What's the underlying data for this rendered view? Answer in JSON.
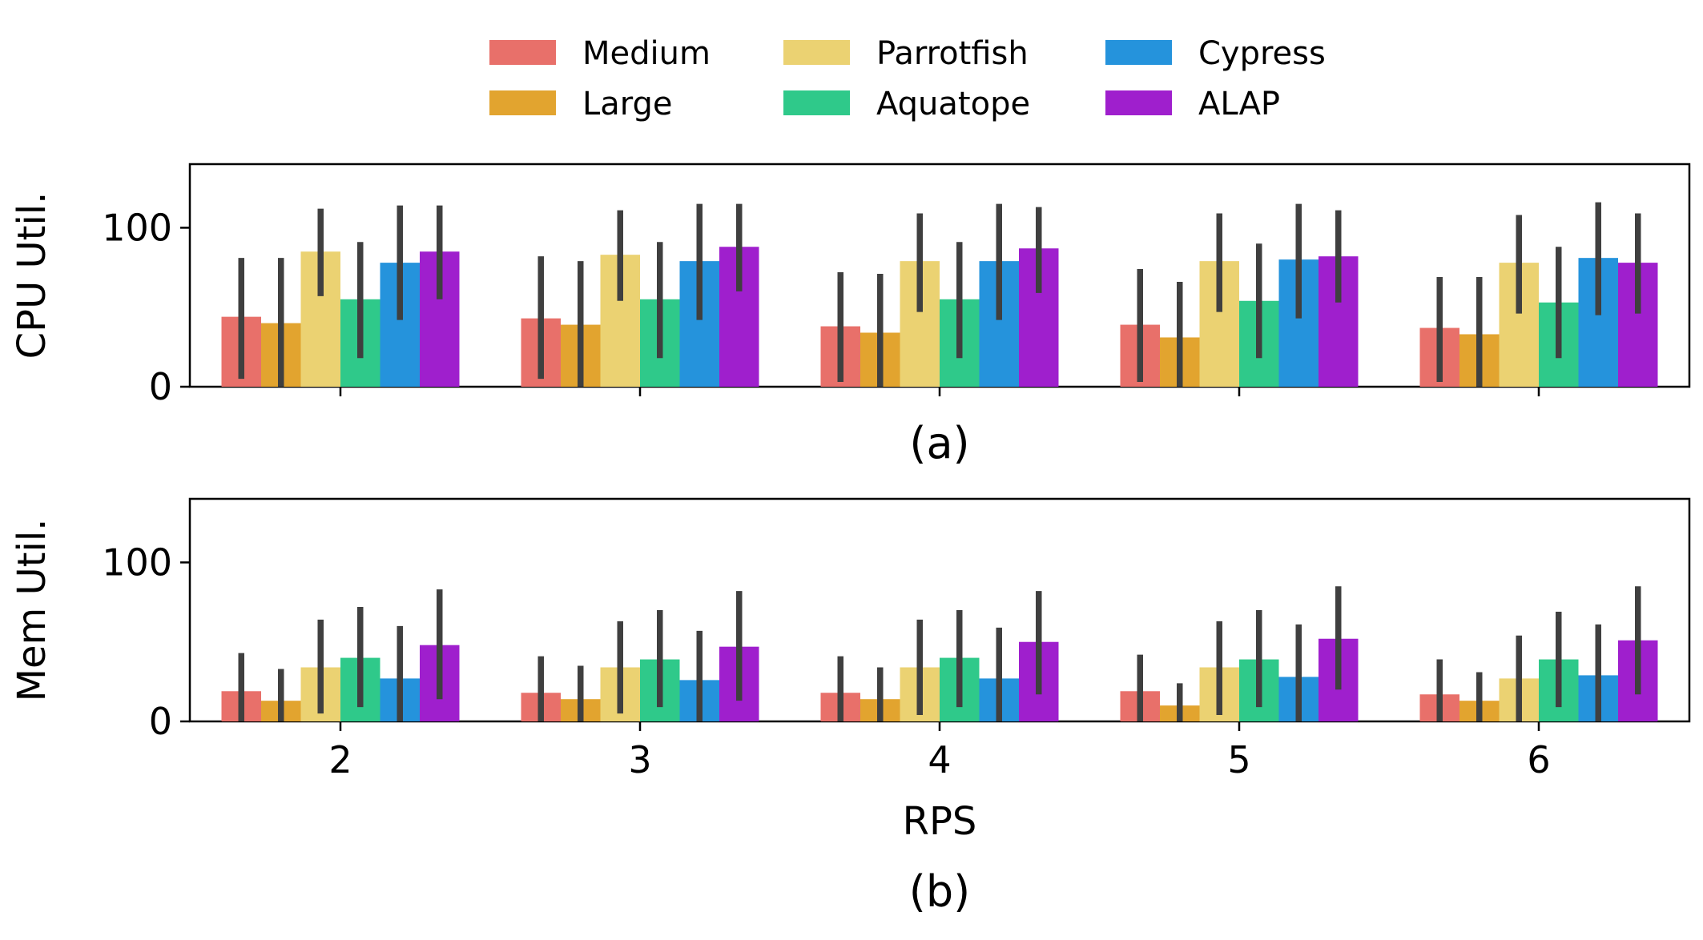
{
  "chart_data": [
    {
      "type": "bar",
      "panel_caption": "(a)",
      "ylabel": "CPU Util.",
      "xlabel": "",
      "ylim": [
        0,
        140
      ],
      "yticks": [
        0,
        100
      ],
      "categories": [
        "2",
        "3",
        "4",
        "5",
        "6"
      ],
      "series": [
        {
          "name": "Medium",
          "values": [
            44,
            43,
            38,
            39,
            37
          ],
          "err_low": [
            5,
            5,
            3,
            3,
            3
          ],
          "err_high": [
            81,
            82,
            72,
            74,
            69
          ]
        },
        {
          "name": "Large",
          "values": [
            40,
            39,
            34,
            31,
            33
          ],
          "err_low": [
            0,
            0,
            0,
            0,
            0
          ],
          "err_high": [
            81,
            79,
            71,
            66,
            69
          ]
        },
        {
          "name": "Parrotfish",
          "values": [
            85,
            83,
            79,
            79,
            78
          ],
          "err_low": [
            57,
            54,
            47,
            47,
            46
          ],
          "err_high": [
            112,
            111,
            109,
            109,
            108
          ]
        },
        {
          "name": "Aquatope",
          "values": [
            55,
            55,
            55,
            54,
            53
          ],
          "err_low": [
            18,
            18,
            18,
            18,
            18
          ],
          "err_high": [
            91,
            91,
            91,
            90,
            88
          ]
        },
        {
          "name": "Cypress",
          "values": [
            78,
            79,
            79,
            80,
            81
          ],
          "err_low": [
            42,
            42,
            42,
            43,
            45
          ],
          "err_high": [
            114,
            115,
            115,
            115,
            116
          ]
        },
        {
          "name": "ALAP",
          "values": [
            85,
            88,
            87,
            82,
            78
          ],
          "err_low": [
            55,
            60,
            59,
            53,
            46
          ],
          "err_high": [
            114,
            115,
            113,
            111,
            109
          ]
        }
      ]
    },
    {
      "type": "bar",
      "panel_caption": "(b)",
      "ylabel": "Mem Util.",
      "xlabel": "RPS",
      "ylim": [
        0,
        140
      ],
      "yticks": [
        0,
        100
      ],
      "categories": [
        "2",
        "3",
        "4",
        "5",
        "6"
      ],
      "series": [
        {
          "name": "Medium",
          "values": [
            19,
            18,
            18,
            19,
            17
          ],
          "err_low": [
            0,
            0,
            0,
            0,
            0
          ],
          "err_high": [
            43,
            41,
            41,
            42,
            39
          ]
        },
        {
          "name": "Large",
          "values": [
            13,
            14,
            14,
            10,
            13
          ],
          "err_low": [
            0,
            0,
            0,
            0,
            0
          ],
          "err_high": [
            33,
            35,
            34,
            24,
            31
          ]
        },
        {
          "name": "Parrotfish",
          "values": [
            34,
            34,
            34,
            34,
            27
          ],
          "err_low": [
            5,
            5,
            4,
            4,
            0
          ],
          "err_high": [
            64,
            63,
            64,
            63,
            54
          ]
        },
        {
          "name": "Aquatope",
          "values": [
            40,
            39,
            40,
            39,
            39
          ],
          "err_low": [
            9,
            9,
            9,
            9,
            9
          ],
          "err_high": [
            72,
            70,
            70,
            70,
            69
          ]
        },
        {
          "name": "Cypress",
          "values": [
            27,
            26,
            27,
            28,
            29
          ],
          "err_low": [
            0,
            0,
            0,
            0,
            0
          ],
          "err_high": [
            60,
            57,
            59,
            61,
            61
          ]
        },
        {
          "name": "ALAP",
          "values": [
            48,
            47,
            50,
            52,
            51
          ],
          "err_low": [
            14,
            13,
            17,
            20,
            17
          ],
          "err_high": [
            83,
            82,
            82,
            85,
            85
          ]
        }
      ]
    }
  ],
  "legend": {
    "placement": "top-center",
    "items": [
      {
        "label": "Medium",
        "color": "#e8706a"
      },
      {
        "label": "Large",
        "color": "#e2a42f"
      },
      {
        "label": "Parrotfish",
        "color": "#ebd272"
      },
      {
        "label": "Aquatope",
        "color": "#2fc98a"
      },
      {
        "label": "Cypress",
        "color": "#2593dc"
      },
      {
        "label": "ALAP",
        "color": "#9f1fcd"
      }
    ]
  },
  "errorbar_color": "#3f3f3f"
}
